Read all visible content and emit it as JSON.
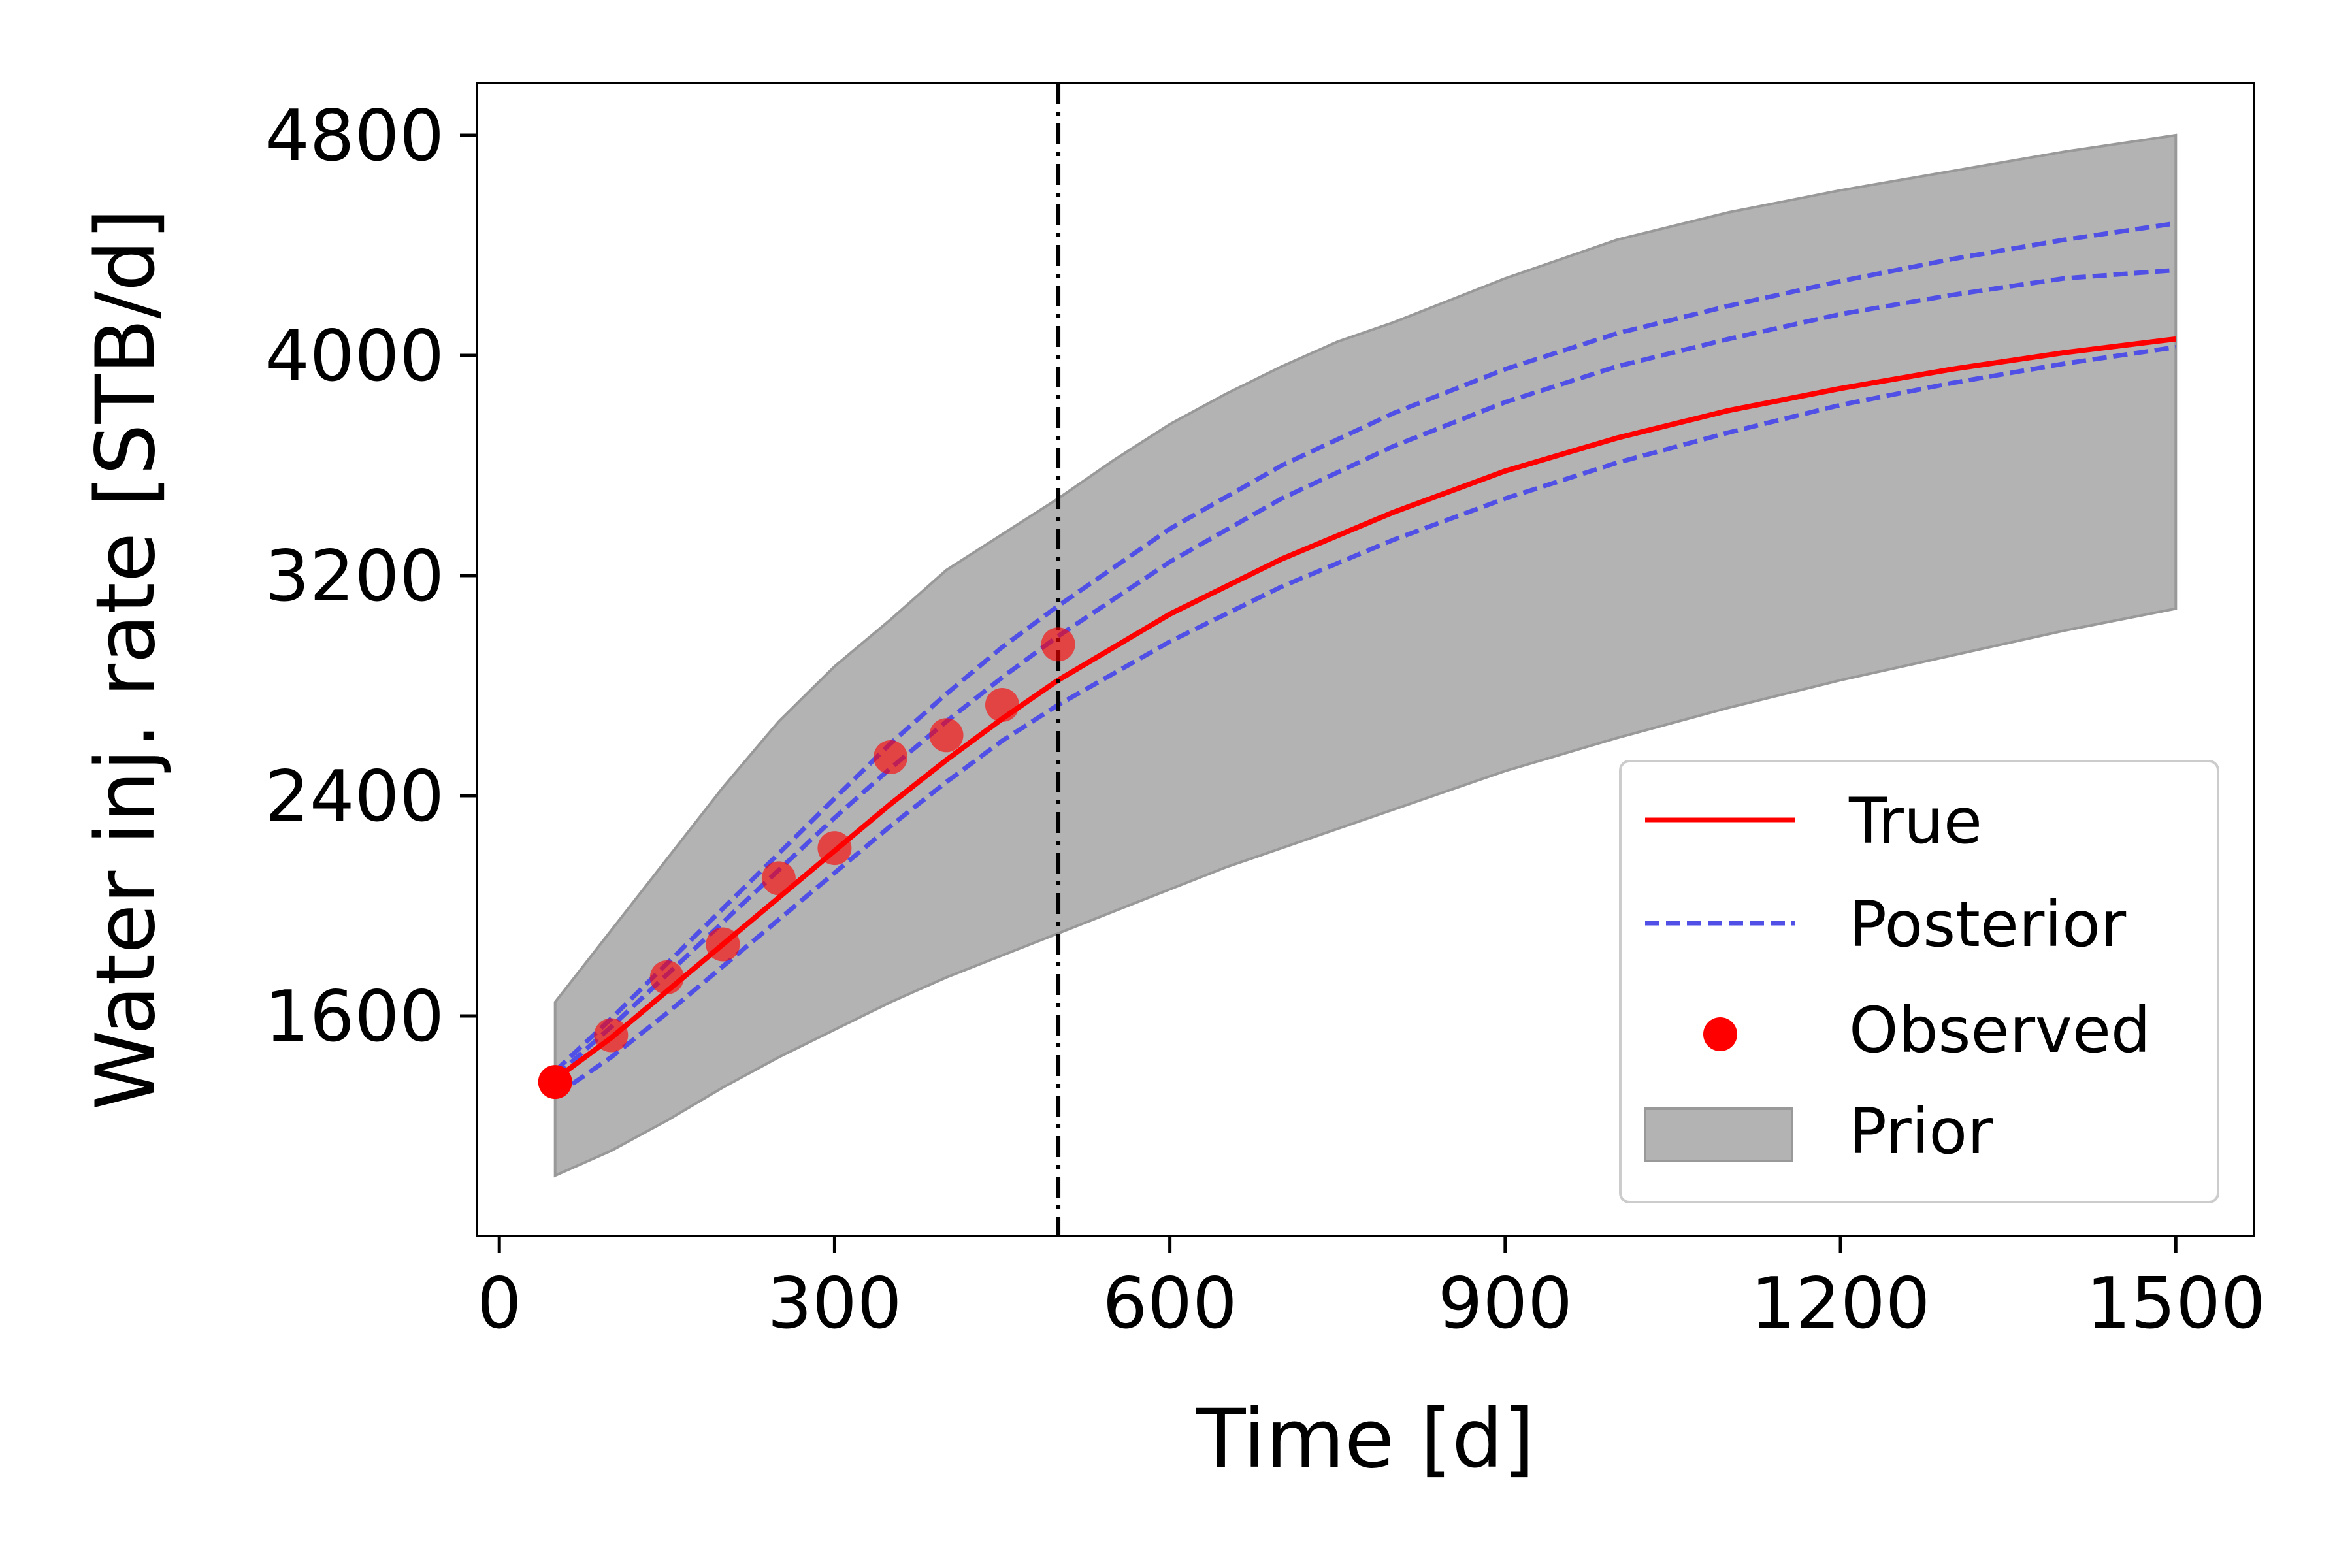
{
  "chart_data": {
    "type": "line",
    "title": "",
    "xlabel": "Time [d]",
    "ylabel": "Water inj. rate [STB/d]",
    "xlim": [
      -20,
      1570
    ],
    "ylim": [
      800,
      4990
    ],
    "xticks": [
      0,
      300,
      600,
      900,
      1200,
      1500
    ],
    "yticks": [
      1600,
      2400,
      3200,
      4000,
      4800
    ],
    "xtick_labels": [
      "0",
      "300",
      "600",
      "900",
      "1200",
      "1500"
    ],
    "ytick_labels": [
      "1600",
      "2400",
      "3200",
      "4000",
      "4800"
    ],
    "vline_x": 500,
    "prior_band": {
      "name": "Prior",
      "x": [
        50,
        100,
        150,
        200,
        250,
        300,
        350,
        400,
        450,
        500,
        550,
        600,
        650,
        700,
        750,
        800,
        850,
        900,
        950,
        1000,
        1100,
        1200,
        1300,
        1400,
        1500
      ],
      "upper": [
        1650,
        1910,
        2170,
        2430,
        2670,
        2870,
        3040,
        3220,
        3350,
        3480,
        3620,
        3750,
        3860,
        3960,
        4050,
        4120,
        4200,
        4280,
        4350,
        4420,
        4520,
        4600,
        4670,
        4740,
        4800
      ],
      "lower": [
        1020,
        1110,
        1220,
        1340,
        1450,
        1550,
        1650,
        1740,
        1820,
        1900,
        1980,
        2060,
        2140,
        2210,
        2280,
        2350,
        2420,
        2490,
        2550,
        2610,
        2720,
        2820,
        2910,
        3000,
        3080
      ]
    },
    "series": [
      {
        "name": "True",
        "color": "#ff0000",
        "style": "solid",
        "x": [
          50,
          100,
          150,
          200,
          250,
          300,
          350,
          400,
          450,
          500,
          600,
          700,
          800,
          900,
          1000,
          1100,
          1200,
          1300,
          1400,
          1500
        ],
        "values": [
          1370,
          1520,
          1690,
          1860,
          2030,
          2200,
          2370,
          2530,
          2680,
          2820,
          3060,
          3260,
          3430,
          3580,
          3700,
          3800,
          3880,
          3950,
          4010,
          4060
        ]
      },
      {
        "name": "Posterior",
        "color": "#5050e6",
        "style": "dashed",
        "x": [
          50,
          100,
          150,
          200,
          250,
          300,
          350,
          400,
          450,
          500,
          600,
          700,
          800,
          900,
          1000,
          1100,
          1200,
          1300,
          1400,
          1500
        ],
        "values": [
          1400,
          1590,
          1790,
          1990,
          2190,
          2390,
          2590,
          2770,
          2940,
          3090,
          3370,
          3600,
          3790,
          3950,
          4080,
          4180,
          4270,
          4350,
          4420,
          4480
        ]
      },
      {
        "name": "Posterior",
        "color": "#5050e6",
        "style": "dashed",
        "x": [
          50,
          100,
          150,
          200,
          250,
          300,
          350,
          400,
          450,
          500,
          600,
          700,
          800,
          900,
          1000,
          1100,
          1200,
          1300,
          1400,
          1500
        ],
        "values": [
          1380,
          1560,
          1750,
          1940,
          2130,
          2320,
          2500,
          2670,
          2830,
          2980,
          3250,
          3480,
          3670,
          3830,
          3960,
          4060,
          4150,
          4220,
          4280,
          4310
        ]
      },
      {
        "name": "Posterior",
        "color": "#5050e6",
        "style": "dashed",
        "x": [
          50,
          100,
          150,
          200,
          250,
          300,
          350,
          400,
          450,
          500,
          600,
          700,
          800,
          900,
          1000,
          1100,
          1200,
          1300,
          1400,
          1500
        ],
        "values": [
          1310,
          1450,
          1610,
          1780,
          1950,
          2120,
          2290,
          2450,
          2600,
          2730,
          2960,
          3160,
          3330,
          3480,
          3610,
          3720,
          3820,
          3900,
          3970,
          4030
        ]
      }
    ],
    "observed": {
      "name": "Observed",
      "color": "#ff0000",
      "x": [
        50,
        100,
        150,
        200,
        250,
        300,
        350,
        400,
        450,
        500
      ],
      "y": [
        1360,
        1530,
        1740,
        1860,
        2100,
        2210,
        2540,
        2620,
        2730,
        2950
      ]
    },
    "legend": {
      "position": "lower-right",
      "entries": [
        "True",
        "Posterior",
        "Observed",
        "Prior"
      ]
    },
    "colors": {
      "prior_fill": "#b3b3b3",
      "prior_edge": "#999999",
      "vline": "#000000"
    }
  }
}
